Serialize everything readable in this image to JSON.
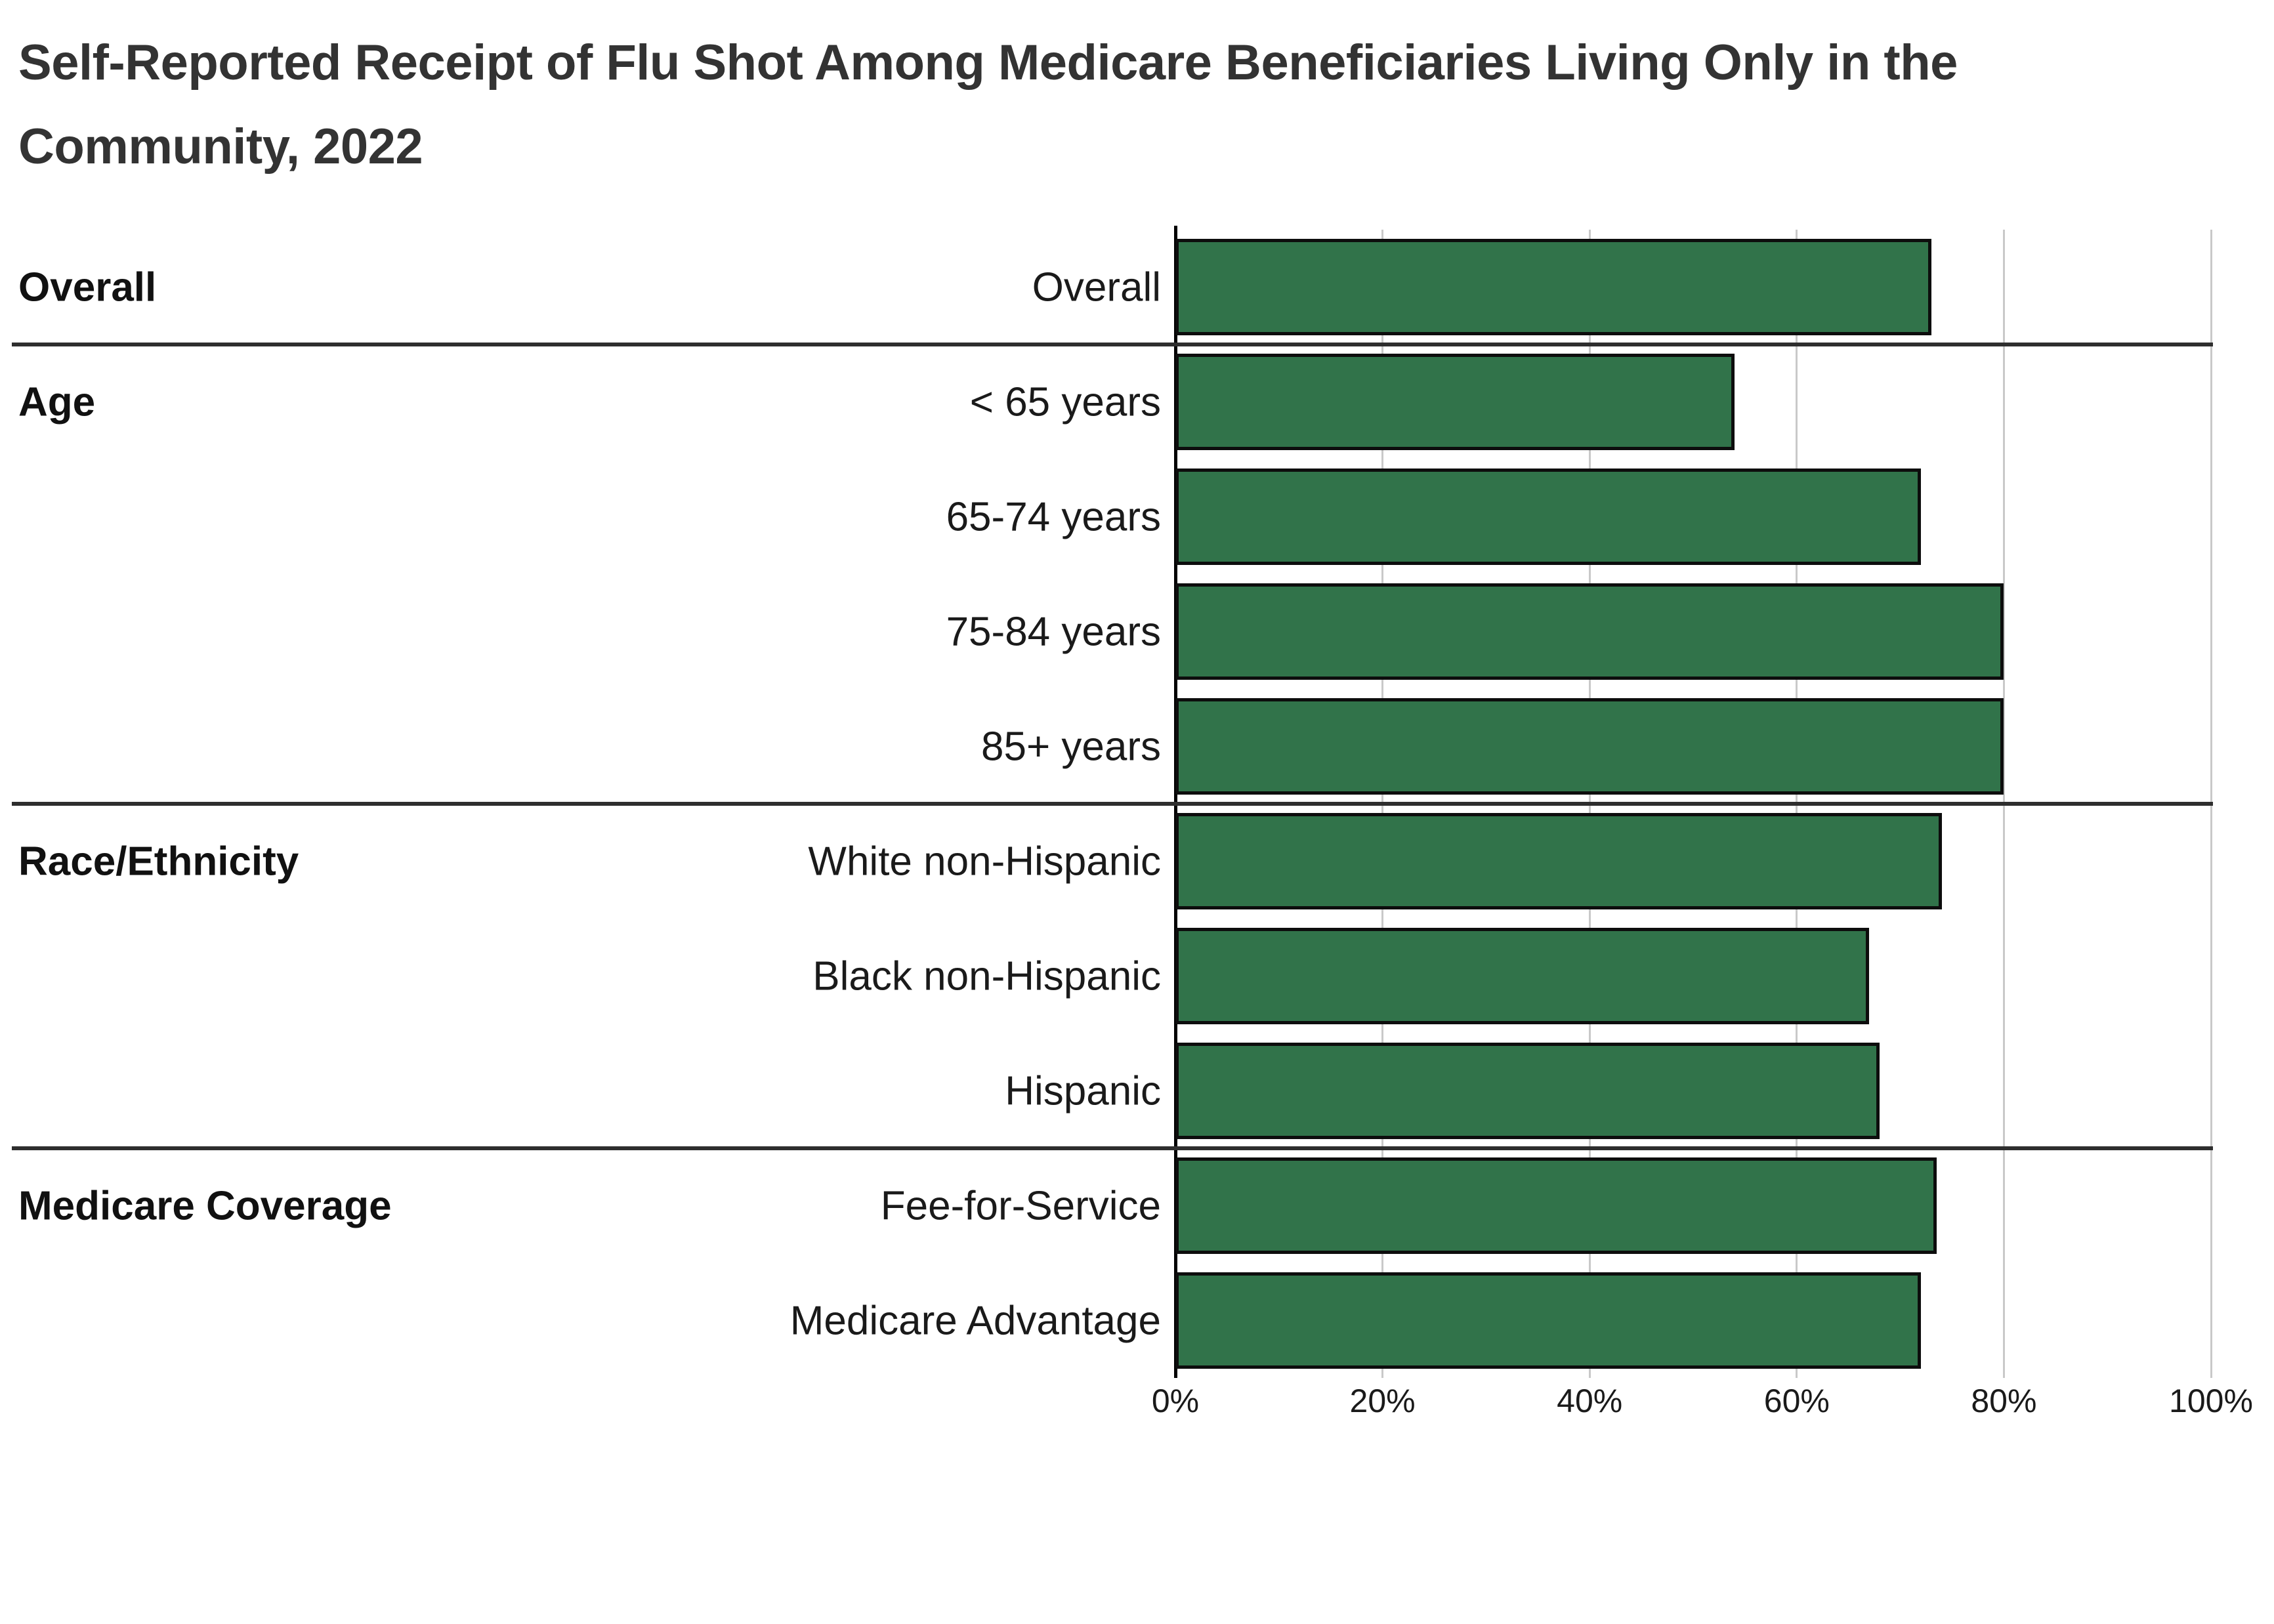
{
  "header": {
    "title_line1": "Self-Reported Receipt of Flu Shot Among Medicare Beneficiaries Living Only in the",
    "title_line2": "Community, 2022"
  },
  "chart_data": {
    "type": "bar",
    "orientation": "horizontal",
    "title": "Self-Reported Receipt of Flu Shot Among Medicare Beneficiaries Living Only in the Community, 2022",
    "value_unit": "percent",
    "xlim": [
      0,
      100
    ],
    "x_tick_values": [
      0,
      20,
      40,
      60,
      80,
      100
    ],
    "x_tick_labels": [
      "0%",
      "20%",
      "40%",
      "60%",
      "80%",
      "100%"
    ],
    "grid": true,
    "legend": false,
    "groups": [
      {
        "label": "Overall",
        "rows": [
          {
            "label": "Overall",
            "value": 73
          }
        ]
      },
      {
        "label": "Age",
        "rows": [
          {
            "label": "< 65 years",
            "value": 54
          },
          {
            "label": "65-74 years",
            "value": 72
          },
          {
            "label": "75-84 years",
            "value": 80
          },
          {
            "label": "85+ years",
            "value": 80
          }
        ]
      },
      {
        "label": "Race/Ethnicity",
        "rows": [
          {
            "label": "White non-Hispanic",
            "value": 74
          },
          {
            "label": "Black non-Hispanic",
            "value": 67
          },
          {
            "label": "Hispanic",
            "value": 68
          }
        ]
      },
      {
        "label": "Medicare Coverage",
        "rows": [
          {
            "label": "Fee-for-Service",
            "value": 73.5
          },
          {
            "label": "Medicare Advantage",
            "value": 72
          }
        ]
      }
    ],
    "colors": {
      "bar_fill": "#31734A",
      "bar_border": "#0D0D0D",
      "gridline": "#C9C9C9",
      "axis_line": "#000000",
      "divider": "#2E2E2E",
      "title_text": "#333333",
      "label_text": "#1A1A1A"
    }
  }
}
